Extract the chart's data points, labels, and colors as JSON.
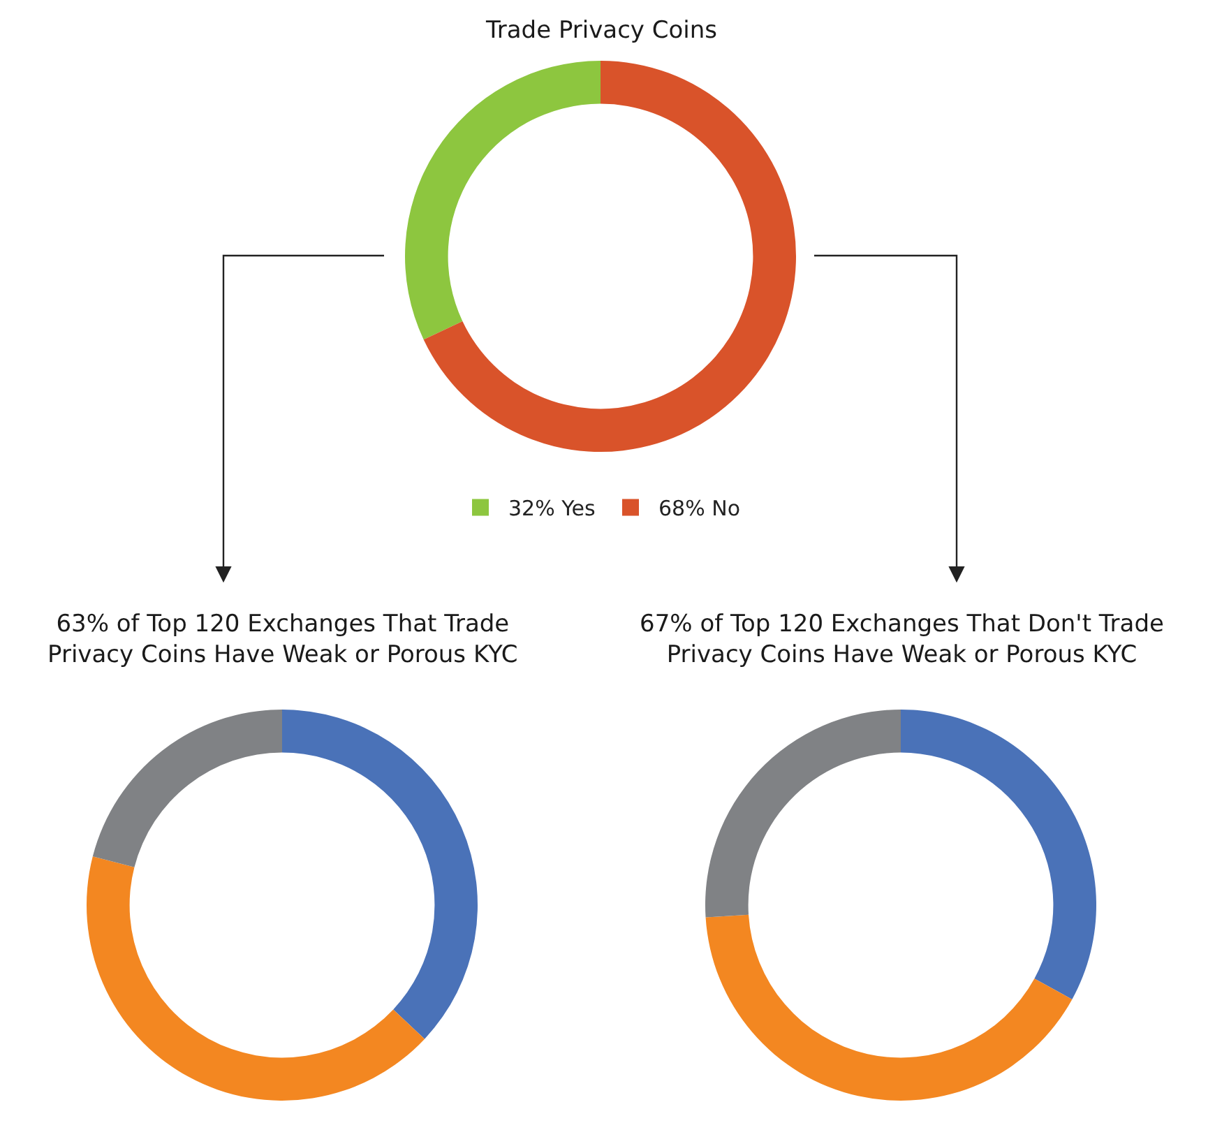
{
  "chart_data": [
    {
      "type": "donut",
      "title": "Trade Privacy Coins",
      "categories": [
        "32% Yes",
        "68% No"
      ],
      "values": [
        32,
        68
      ],
      "colors": [
        "#8dc63f",
        "#d9532a"
      ],
      "legend": "bottom"
    },
    {
      "type": "donut",
      "title": "63% of Top 120 Exchanges That Trade Privacy Coins Have Weak or Porous KYC",
      "categories": [
        null,
        null,
        null
      ],
      "values": [
        37,
        42,
        21
      ],
      "colors": [
        "#4a72b8",
        "#f38721",
        "#808285"
      ]
    },
    {
      "type": "donut",
      "title": "67% of Top 120 Exchanges That Don't Trade Privacy Coins Have Weak or Porous KYC",
      "categories": [
        null,
        null,
        null
      ],
      "values": [
        33,
        41,
        26
      ],
      "colors": [
        "#4a72b8",
        "#f38721",
        "#808285"
      ]
    }
  ]
}
